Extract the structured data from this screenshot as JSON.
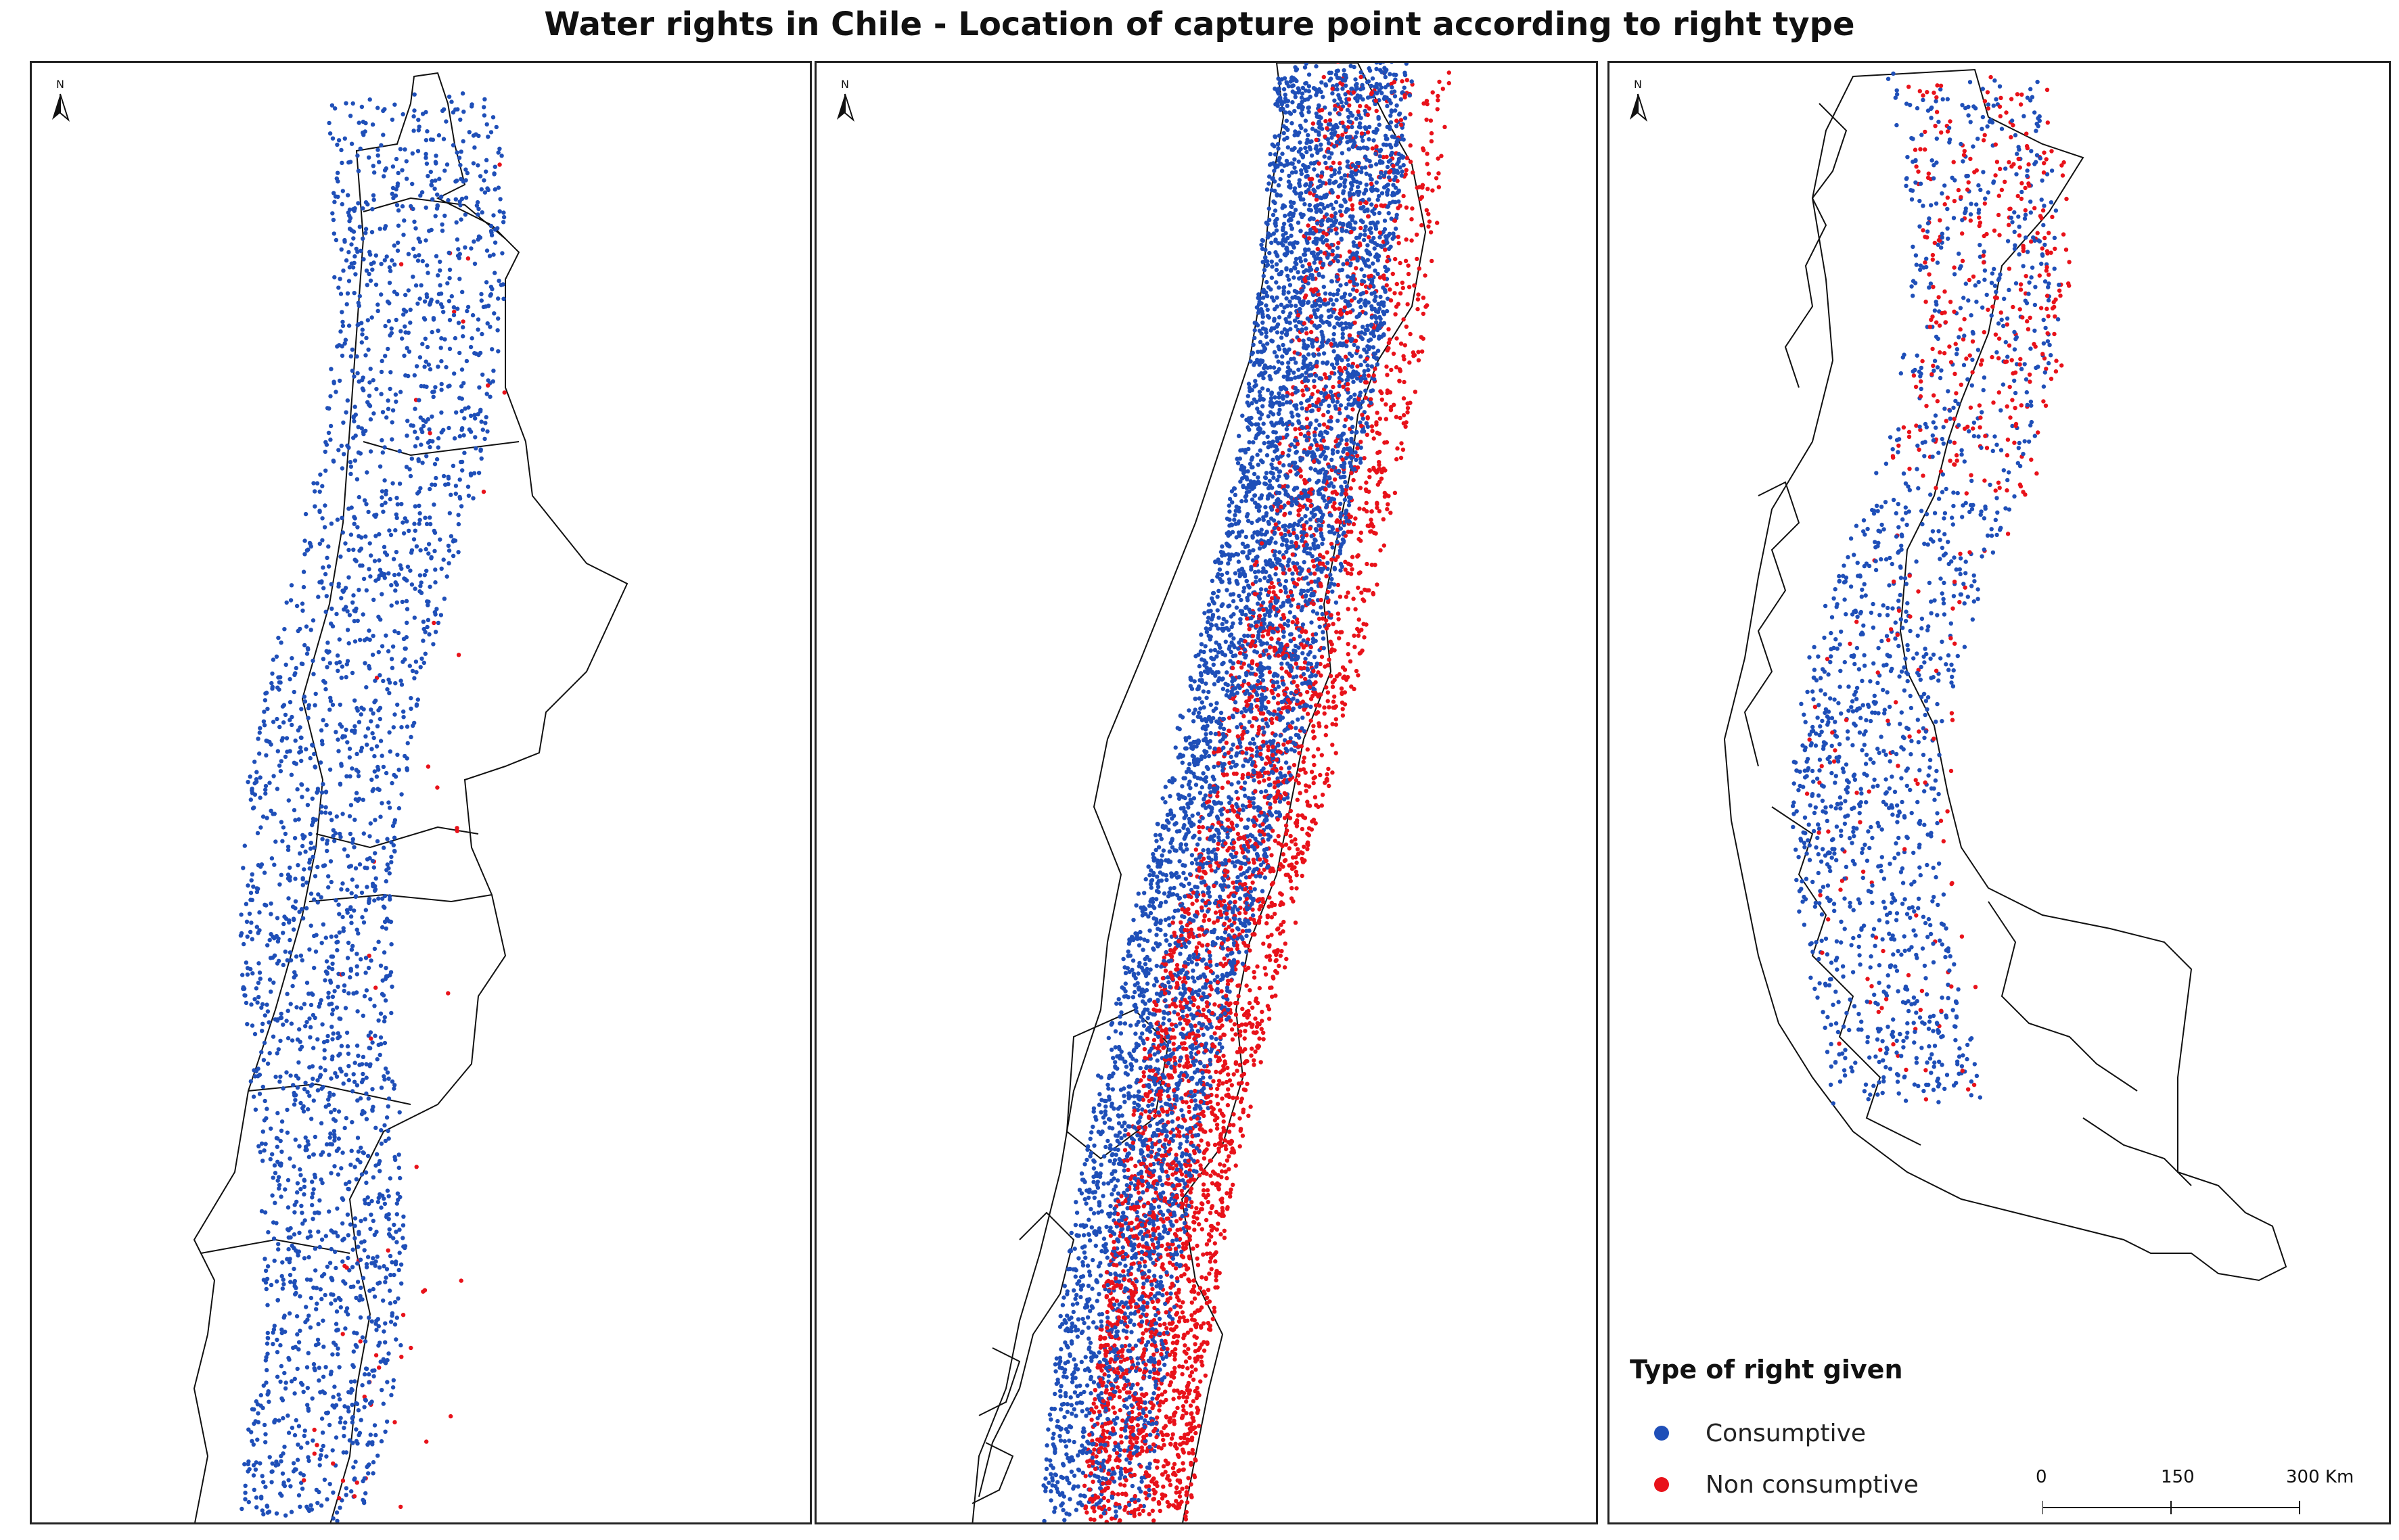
{
  "title": "Water rights in Chile - Location of capture point according to right type",
  "north_arrow": {
    "label": "N"
  },
  "legend": {
    "title": "Type of right given",
    "items": [
      {
        "label": "Consumptive",
        "color": "#1f4fb8"
      },
      {
        "label": "Non consumptive",
        "color": "#e8121a"
      }
    ]
  },
  "scale_bar": {
    "labels": [
      "0",
      "150",
      "300 Km"
    ]
  },
  "colors": {
    "outline": "#111111",
    "consumptive": "#1f4fb8",
    "non_consumptive": "#e8121a"
  }
}
